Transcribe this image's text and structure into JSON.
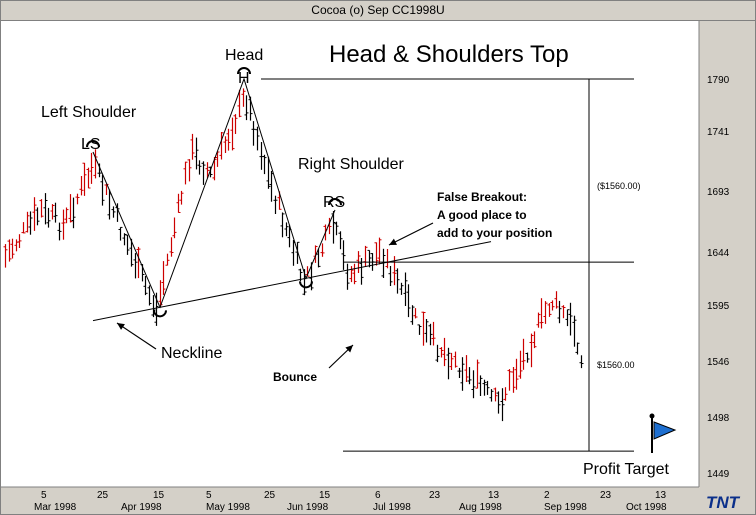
{
  "window": {
    "title": "Cocoa (o) Sep CC1998U"
  },
  "chart_data": {
    "type": "ohlc",
    "title": "Head & Shoulders Top",
    "y_ticks": [
      "1790",
      "1741",
      "1693",
      "1644",
      "1595",
      "1546",
      "1498",
      "1449"
    ],
    "y_range": [
      1428,
      1830
    ],
    "x_day_ticks": [
      "5",
      "25",
      "15",
      "5",
      "25",
      "15",
      "6",
      "23",
      "13",
      "2",
      "23",
      "13"
    ],
    "x_month_labels": [
      "Mar 1998",
      "Apr 1998",
      "May 1998",
      "Jun 1998",
      "Jul 1998",
      "Aug 1998",
      "Sep 1998",
      "Oct 1998"
    ],
    "annotations": {
      "left_shoulder": "Left Shoulder",
      "ls": "LS",
      "head": "Head",
      "h": "H",
      "right_shoulder": "Right Shoulder",
      "rs": "RS",
      "false_breakout_1": "False Breakout:",
      "false_breakout_2": "A good place to",
      "false_breakout_3": "add to your position",
      "neckline": "Neckline",
      "bounce": "Bounce",
      "measure_1": "($1560.00)",
      "measure_2": "$1560.00",
      "profit_target": "Profit Target"
    },
    "key_levels": {
      "head_high": 1780,
      "neckline_break_level": 1622,
      "profit_target": 1459
    },
    "pattern_points": [
      {
        "name": "LS",
        "price": 1717
      },
      {
        "name": "neckline-low-1",
        "price": 1583
      },
      {
        "name": "H",
        "price": 1780
      },
      {
        "name": "neckline-low-2",
        "price": 1608
      },
      {
        "name": "RS",
        "price": 1667
      }
    ],
    "colors": {
      "up": "#cc0000",
      "down": "#000000",
      "axis_text": "#008000",
      "flag": "#1e6fd0"
    }
  },
  "branding": {
    "logo": "TNT"
  }
}
